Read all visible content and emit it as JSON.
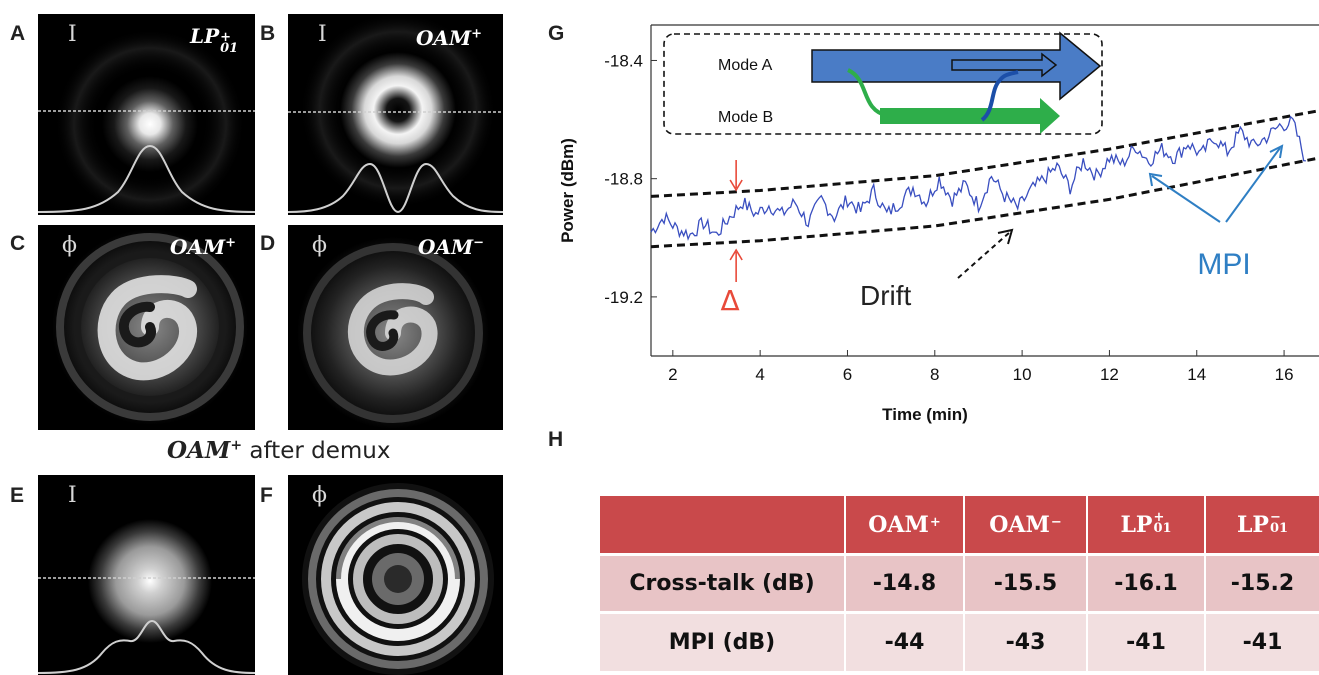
{
  "panels": {
    "A": {
      "letter": "A",
      "symbol": "I",
      "mode_base": "LP",
      "mode_sup": "+",
      "mode_sub": "01"
    },
    "B": {
      "letter": "B",
      "symbol": "I",
      "mode_base": "OAM",
      "mode_sup": "+"
    },
    "C": {
      "letter": "C",
      "symbol": "ϕ",
      "mode_base": "OAM",
      "mode_sup": "+"
    },
    "D": {
      "letter": "D",
      "symbol": "ϕ",
      "mode_base": "OAM",
      "mode_sup": "−"
    },
    "E": {
      "letter": "E",
      "symbol": "I"
    },
    "F": {
      "letter": "F",
      "symbol": "ϕ"
    },
    "G": {
      "letter": "G"
    },
    "H": {
      "letter": "H"
    }
  },
  "demux_caption": {
    "mode_base": "OAM",
    "mode_sup": "+",
    "text": " after demux"
  },
  "chart_data": {
    "type": "line",
    "xlabel": "Time (min)",
    "ylabel": "Power (dBm)",
    "xlim": [
      1.5,
      16.8
    ],
    "ylim": [
      -19.4,
      -18.28
    ],
    "xticks": [
      2,
      4,
      6,
      8,
      10,
      12,
      14,
      16
    ],
    "yticks": [
      -18.4,
      -18.8,
      -19.2
    ],
    "series": [
      {
        "kind": "measured",
        "x": [
          1.5,
          1.8,
          2.1,
          2.4,
          2.7,
          3.0,
          3.3,
          3.6,
          3.9,
          4.2,
          4.5,
          4.8,
          5.1,
          5.4,
          5.7,
          6.0,
          6.3,
          6.6,
          6.9,
          7.2,
          7.5,
          7.8,
          8.1,
          8.4,
          8.7,
          9.0,
          9.3,
          9.6,
          9.9,
          10.2,
          10.5,
          10.8,
          11.1,
          11.4,
          11.7,
          12.0,
          12.3,
          12.6,
          12.9,
          13.2,
          13.5,
          13.8,
          14.1,
          14.4,
          14.7,
          15.0,
          15.3,
          15.6,
          15.9,
          16.2,
          16.5
        ],
        "y": [
          -18.98,
          -18.93,
          -18.97,
          -18.99,
          -18.95,
          -18.99,
          -18.93,
          -18.88,
          -18.92,
          -18.89,
          -18.92,
          -18.88,
          -18.95,
          -18.87,
          -18.93,
          -18.87,
          -18.91,
          -18.84,
          -18.92,
          -18.88,
          -18.83,
          -18.88,
          -18.8,
          -18.87,
          -18.82,
          -18.89,
          -18.79,
          -18.86,
          -18.9,
          -18.84,
          -18.8,
          -18.76,
          -18.83,
          -18.74,
          -18.79,
          -18.73,
          -18.75,
          -18.69,
          -18.74,
          -18.7,
          -18.73,
          -18.68,
          -18.72,
          -18.66,
          -18.71,
          -18.64,
          -18.69,
          -18.66,
          -18.62,
          -18.61,
          -18.74
        ]
      },
      {
        "kind": "upper-envelope",
        "x": [
          1.5,
          4,
          8,
          12,
          16.8
        ],
        "y": [
          -18.86,
          -18.84,
          -18.79,
          -18.7,
          -18.57
        ]
      },
      {
        "kind": "lower-envelope",
        "x": [
          1.5,
          4,
          8,
          12,
          16.8
        ],
        "y": [
          -19.03,
          -19.01,
          -18.96,
          -18.87,
          -18.73
        ]
      }
    ],
    "annotations": {
      "mode_a": "Mode A",
      "mode_b": "Mode B",
      "delta": "Δ",
      "drift": "Drift",
      "mpi": "MPI"
    },
    "colors": {
      "trace": "#3a4fc0",
      "mpi": "#2f7fc4",
      "delta": "#e84a3a",
      "mode_a": "#4a7cc6",
      "mode_b": "#2eae4a"
    }
  },
  "table": {
    "columns": [
      {
        "base": "OAM",
        "sup": "+"
      },
      {
        "base": "OAM",
        "sup": "−"
      },
      {
        "base": "LP",
        "sup": "+",
        "sub": "01"
      },
      {
        "base": "LP",
        "sup": "−",
        "sub": "01"
      }
    ],
    "rows": [
      {
        "label": "Cross-talk (dB)",
        "values": [
          "-14.8",
          "-15.5",
          "-16.1",
          "-15.2"
        ]
      },
      {
        "label": "MPI (dB)",
        "values": [
          "-44",
          "-43",
          "-41",
          "-41"
        ]
      }
    ],
    "colors": {
      "header": "#c9494b",
      "row1": "#e8c4c6",
      "row2": "#f2dfe0"
    }
  }
}
